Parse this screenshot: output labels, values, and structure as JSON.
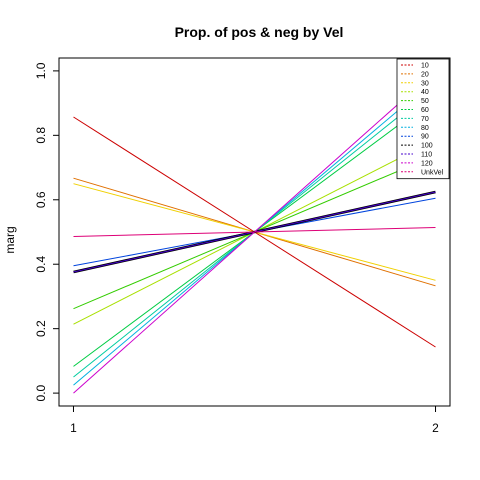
{
  "chart_data": {
    "type": "line",
    "title": "Prop. of pos & neg by Vel",
    "xlabel": "",
    "ylabel": "marg",
    "x": [
      1,
      2
    ],
    "xlim": [
      0.96,
      2.04
    ],
    "ylim": [
      -0.04,
      1.04
    ],
    "xticks": [
      "1",
      "2"
    ],
    "yticks": [
      "0.0",
      "0.2",
      "0.4",
      "0.6",
      "0.8",
      "1.0"
    ],
    "ytick_values": [
      0,
      0.2,
      0.4,
      0.6,
      0.8,
      1.0
    ],
    "legend_position": "top-right",
    "series": [
      {
        "name": "10",
        "color": "#CC0000",
        "width": 1,
        "values": [
          0.857,
          0.143
        ]
      },
      {
        "name": "20",
        "color": "#E07000",
        "width": 1,
        "values": [
          0.667,
          0.333
        ]
      },
      {
        "name": "30",
        "color": "#F0D000",
        "width": 1,
        "values": [
          0.65,
          0.35
        ]
      },
      {
        "name": "40",
        "color": "#A8E000",
        "width": 1,
        "values": [
          0.214,
          0.786
        ]
      },
      {
        "name": "50",
        "color": "#33CC00",
        "width": 1,
        "values": [
          0.262,
          0.738
        ]
      },
      {
        "name": "60",
        "color": "#00CC44",
        "width": 1,
        "values": [
          0.083,
          0.917
        ]
      },
      {
        "name": "70",
        "color": "#00CCA0",
        "width": 1,
        "values": [
          0.05,
          0.95
        ]
      },
      {
        "name": "80",
        "color": "#00B0E0",
        "width": 1,
        "values": [
          0.025,
          0.975
        ]
      },
      {
        "name": "90",
        "color": "#0044DD",
        "width": 1,
        "values": [
          0.395,
          0.605
        ]
      },
      {
        "name": "100",
        "color": "#000000",
        "width": 2.5,
        "values": [
          0.376,
          0.624
        ]
      },
      {
        "name": "110",
        "color": "#4400CC",
        "width": 1,
        "values": [
          0.376,
          0.624
        ]
      },
      {
        "name": "120",
        "color": "#CC00CC",
        "width": 1,
        "values": [
          0.0,
          1.0
        ]
      },
      {
        "name": "UnkVel",
        "color": "#DD0077",
        "width": 1,
        "values": [
          0.486,
          0.514
        ]
      }
    ]
  }
}
